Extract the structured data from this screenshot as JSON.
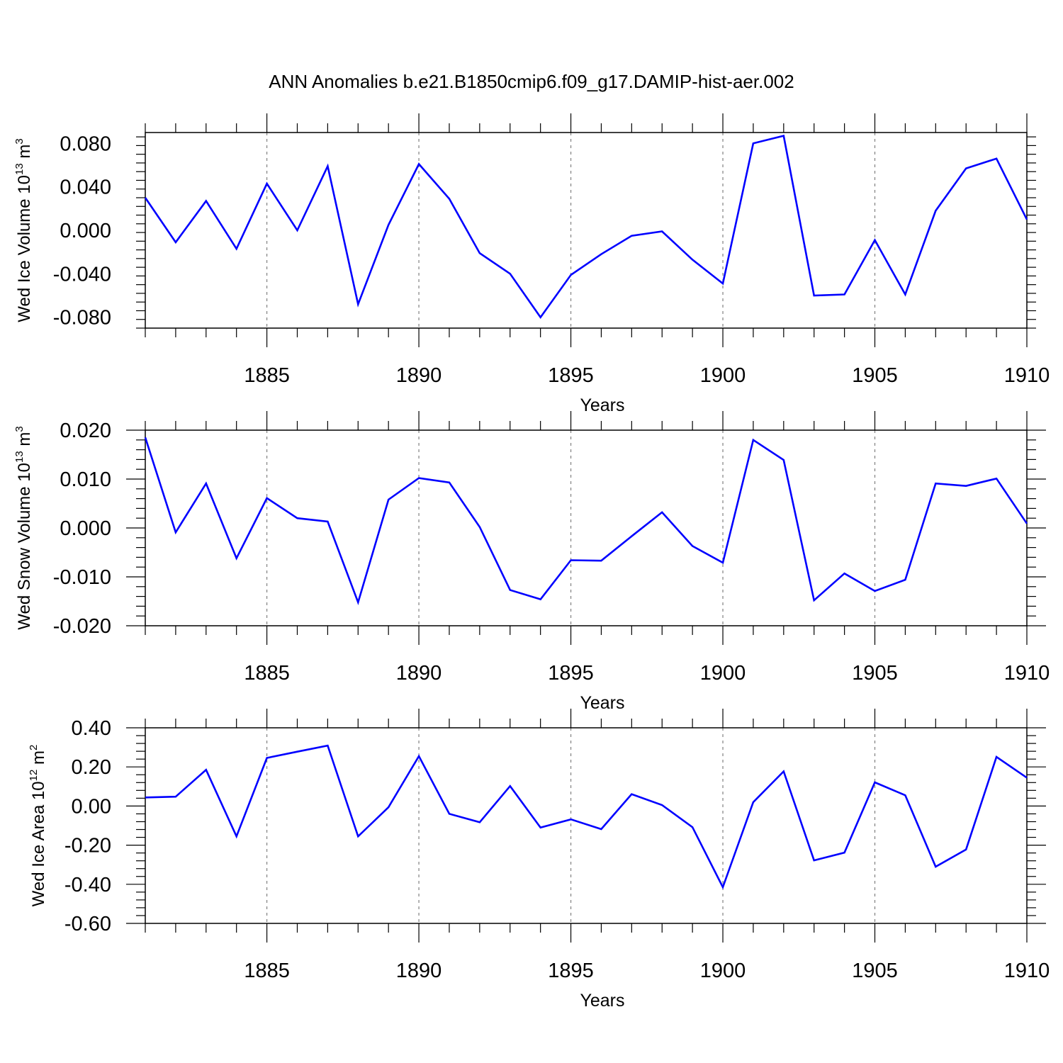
{
  "title": "ANN Anomalies b.e21.B1850cmip6.f09_g17.DAMIP-hist-aer.002",
  "colors": {
    "line": "#0000ff",
    "axis": "#000000",
    "grid": "#808080"
  },
  "chart_data": [
    {
      "type": "line",
      "name": "Wed Ice Volume",
      "ylabel": {
        "text": "Wed Ice Volume 10",
        "exp": "13",
        "unit": " m",
        "unit_exp": "3"
      },
      "xlabel": "Years",
      "xlim": [
        1881,
        1910
      ],
      "ylim": [
        -0.09,
        0.09
      ],
      "xticks": [
        1885,
        1890,
        1895,
        1900,
        1905,
        1910
      ],
      "yticks": [
        0.08,
        0.04,
        0.0,
        -0.04,
        -0.08
      ],
      "ytick_labels": [
        "0.080",
        "0.040",
        "0.000",
        "-0.040",
        "-0.080"
      ],
      "grid": "dashed vertical at major x ticks",
      "x": [
        1881,
        1882,
        1883,
        1884,
        1885,
        1886,
        1887,
        1888,
        1889,
        1890,
        1891,
        1892,
        1893,
        1894,
        1895,
        1896,
        1897,
        1898,
        1899,
        1900,
        1901,
        1902,
        1903,
        1904,
        1905,
        1906,
        1907,
        1908,
        1909,
        1910
      ],
      "y": [
        0.03,
        -0.011,
        0.027,
        -0.017,
        0.043,
        0.0,
        0.059,
        -0.068,
        0.005,
        0.061,
        0.029,
        -0.021,
        -0.04,
        -0.08,
        -0.041,
        -0.022,
        -0.005,
        -0.001,
        -0.027,
        -0.049,
        0.08,
        0.087,
        -0.06,
        -0.059,
        -0.009,
        -0.059,
        0.018,
        0.057,
        0.066,
        0.01
      ]
    },
    {
      "type": "line",
      "name": "Wed Snow Volume",
      "ylabel": {
        "text": "Wed Snow Volume 10",
        "exp": "13",
        "unit": " m",
        "unit_exp": "3"
      },
      "xlabel": "Years",
      "xlim": [
        1881,
        1910
      ],
      "ylim": [
        -0.02,
        0.02
      ],
      "xticks": [
        1885,
        1890,
        1895,
        1900,
        1905,
        1910
      ],
      "yticks": [
        0.02,
        0.01,
        0.0,
        -0.01,
        -0.02
      ],
      "ytick_labels": [
        "0.020",
        "0.010",
        "0.000",
        "-0.010",
        "-0.020"
      ],
      "grid": "dashed vertical at major x ticks",
      "x": [
        1881,
        1882,
        1883,
        1884,
        1885,
        1886,
        1887,
        1888,
        1889,
        1890,
        1891,
        1892,
        1893,
        1894,
        1895,
        1896,
        1897,
        1898,
        1899,
        1900,
        1901,
        1902,
        1903,
        1904,
        1905,
        1906,
        1907,
        1908,
        1909,
        1910
      ],
      "y": [
        0.0185,
        -0.0009,
        0.0091,
        -0.0062,
        0.0061,
        0.002,
        0.0013,
        -0.0152,
        0.0058,
        0.0102,
        0.0093,
        0.0002,
        -0.0127,
        -0.0146,
        -0.0066,
        -0.0067,
        -0.0017,
        0.0032,
        -0.0037,
        -0.0071,
        0.018,
        0.0139,
        -0.0148,
        -0.0093,
        -0.0129,
        -0.0106,
        0.0091,
        0.0086,
        0.0101,
        0.0009
      ]
    },
    {
      "type": "line",
      "name": "Wed Ice Area",
      "ylabel": {
        "text": "Wed Ice Area 10",
        "exp": "12",
        "unit": " m",
        "unit_exp": "2"
      },
      "xlabel": "Years",
      "xlim": [
        1881,
        1910
      ],
      "ylim": [
        -0.6,
        0.4
      ],
      "xticks": [
        1885,
        1890,
        1895,
        1900,
        1905,
        1910
      ],
      "yticks": [
        0.4,
        0.2,
        0.0,
        -0.2,
        -0.4,
        -0.6
      ],
      "ytick_labels": [
        "0.40",
        "0.20",
        "0.00",
        "-0.20",
        "-0.40",
        "-0.60"
      ],
      "grid": "dashed vertical at major x ticks",
      "x": [
        1881,
        1882,
        1883,
        1884,
        1885,
        1886,
        1887,
        1888,
        1889,
        1890,
        1891,
        1892,
        1893,
        1894,
        1895,
        1896,
        1897,
        1898,
        1899,
        1900,
        1901,
        1902,
        1903,
        1904,
        1905,
        1906,
        1907,
        1908,
        1909,
        1910
      ],
      "y": [
        0.044,
        0.048,
        0.185,
        -0.155,
        0.246,
        0.278,
        0.309,
        -0.155,
        -0.006,
        0.255,
        -0.04,
        -0.083,
        0.102,
        -0.11,
        -0.068,
        -0.118,
        0.061,
        0.005,
        -0.108,
        -0.415,
        0.02,
        0.177,
        -0.278,
        -0.238,
        0.121,
        0.055,
        -0.31,
        -0.222,
        0.251,
        0.145
      ]
    }
  ]
}
